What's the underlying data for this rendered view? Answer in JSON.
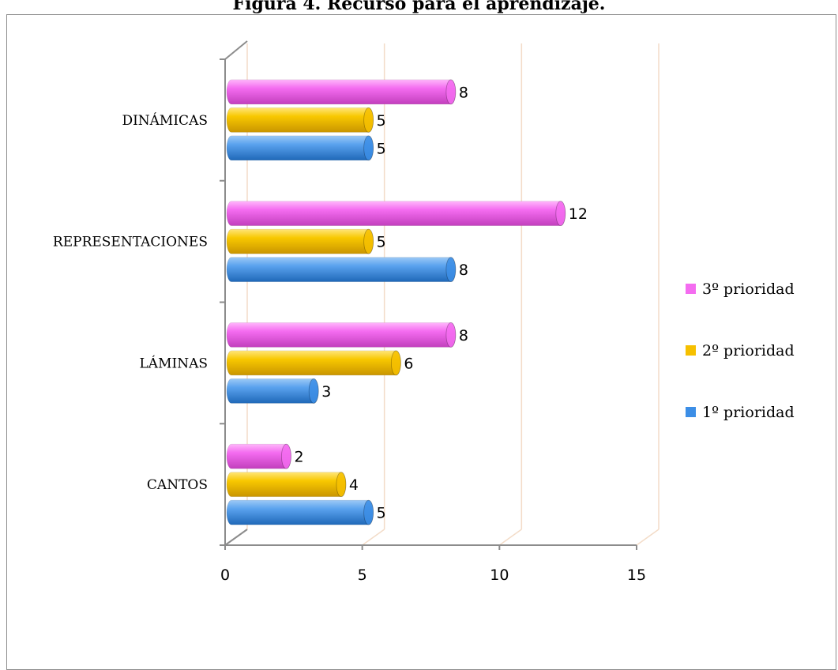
{
  "title": "Figura 4. Recurso para el aprendizaje.",
  "chart_data": {
    "type": "bar",
    "orientation": "horizontal",
    "style": "3d-cylinder",
    "categories": [
      "CANTOS",
      "LÁMINAS",
      "REPRESENTACIONES",
      "DINÁMICAS"
    ],
    "series": [
      {
        "name": "1º prioridad",
        "color": "#3c8ee6",
        "values": [
          5,
          3,
          8,
          5
        ]
      },
      {
        "name": "2º prioridad",
        "color": "#f6c000",
        "values": [
          4,
          6,
          5,
          5
        ]
      },
      {
        "name": "3º prioridad",
        "color": "#f46cf0",
        "values": [
          2,
          8,
          12,
          8
        ]
      }
    ],
    "xlim": [
      0,
      15
    ],
    "xticks": [
      "0",
      "5",
      "10",
      "15"
    ],
    "grid": true,
    "legend": "right",
    "data_labels": true
  }
}
